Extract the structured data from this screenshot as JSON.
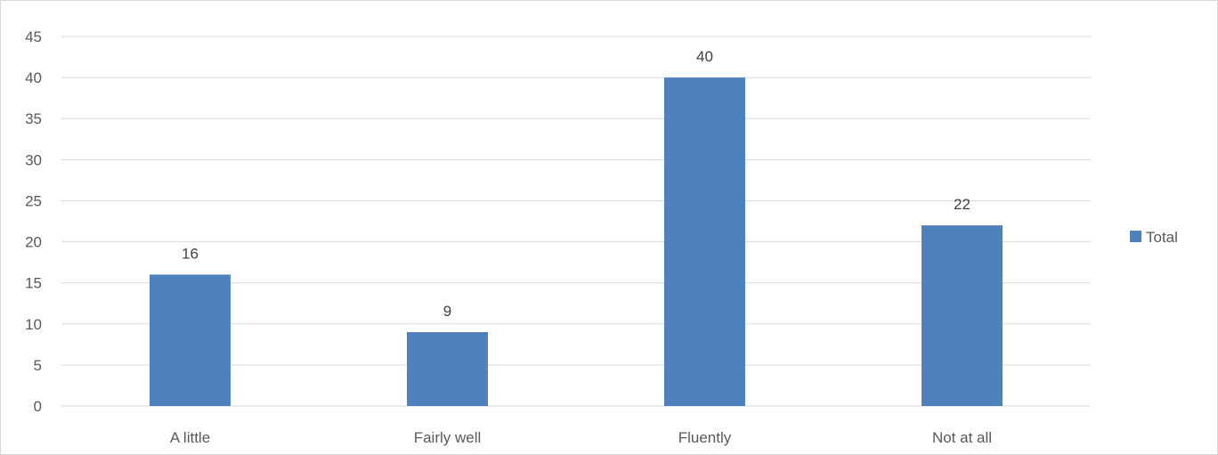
{
  "chart_data": {
    "type": "bar",
    "title": "",
    "xlabel": "",
    "ylabel": "",
    "categories": [
      "A little",
      "Fairly well",
      "Fluently",
      "Not at all"
    ],
    "series": [
      {
        "name": "Total",
        "values": [
          16,
          9,
          40,
          22
        ],
        "color": "#4f81bd"
      }
    ],
    "ylim": [
      0,
      45
    ],
    "yticks": [
      0,
      5,
      10,
      15,
      20,
      25,
      30,
      35,
      40,
      45
    ],
    "grid": true,
    "gridColor": "#d9d9d9",
    "data_labels": true,
    "legend": {
      "position": "right"
    }
  }
}
